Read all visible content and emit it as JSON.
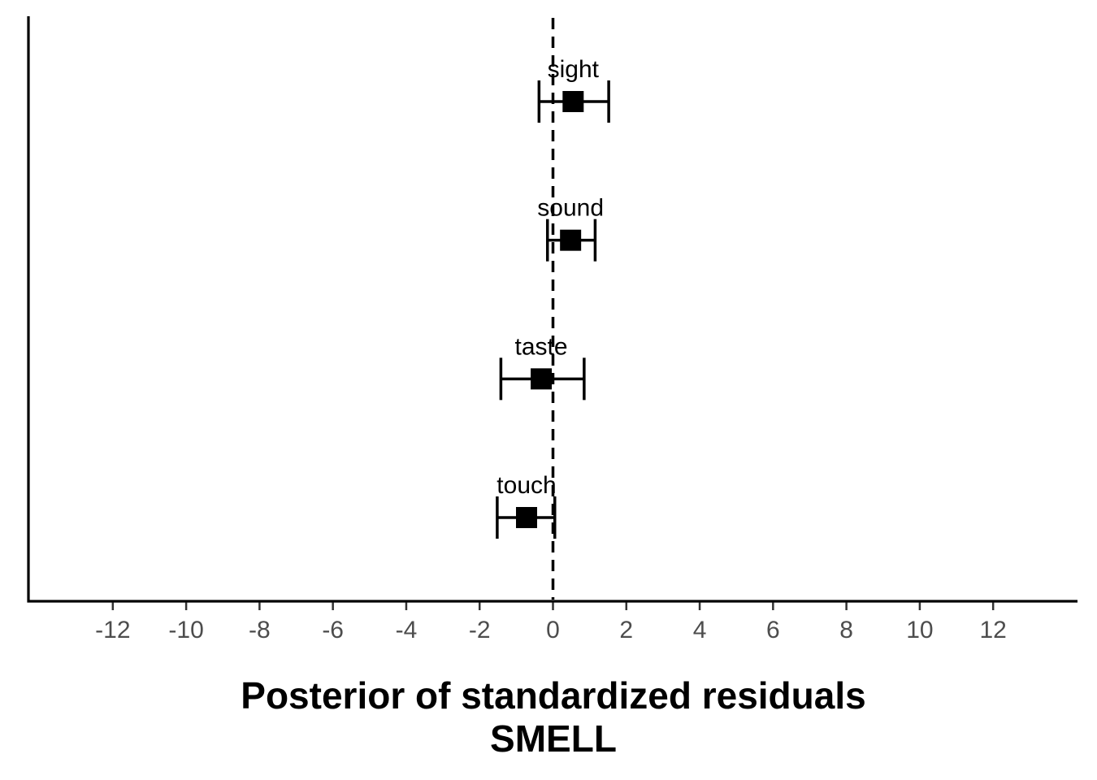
{
  "chart_data": {
    "type": "scatter",
    "xlabel": "Posterior of standardized residuals",
    "xlabel_line2": "SMELL",
    "xlim": [
      -14.3,
      14.3
    ],
    "x_ticks": [
      -12,
      -10,
      -8,
      -6,
      -4,
      -2,
      0,
      2,
      4,
      6,
      8,
      10,
      12
    ],
    "reference_line_x": 0,
    "grid": false,
    "points": [
      {
        "label": "sight",
        "estimate": 0.55,
        "lower": -0.38,
        "upper": 1.52
      },
      {
        "label": "sound",
        "estimate": 0.48,
        "lower": -0.15,
        "upper": 1.15
      },
      {
        "label": "taste",
        "estimate": -0.32,
        "lower": -1.42,
        "upper": 0.85
      },
      {
        "label": "touch",
        "estimate": -0.72,
        "lower": -1.52,
        "upper": 0.05
      }
    ]
  }
}
